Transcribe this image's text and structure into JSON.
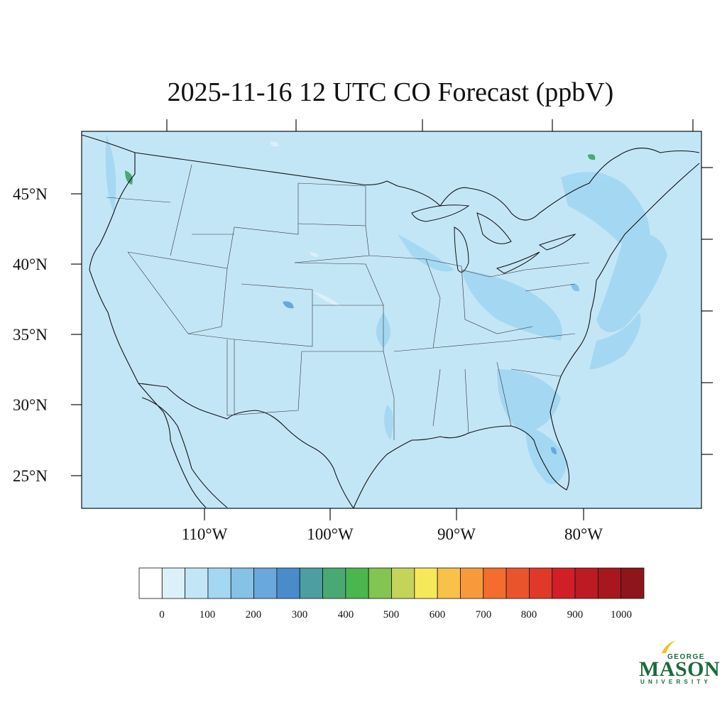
{
  "title": "2025-11-16 12 UTC CO Forecast (ppbV)",
  "map": {
    "projection": "Lambert Conformal, CONUS",
    "background_color": "#c3e6f7",
    "lat_labels": [
      "45°N",
      "40°N",
      "35°N",
      "30°N",
      "25°N"
    ],
    "lon_labels": [
      "110°W",
      "100°W",
      "90°W",
      "80°W"
    ]
  },
  "colorbar": {
    "unit": "ppbV",
    "tick_labels": [
      "0",
      "100",
      "200",
      "300",
      "400",
      "500",
      "600",
      "700",
      "800",
      "900",
      "1000"
    ],
    "colors": [
      "#ffffff",
      "#dcf0fa",
      "#c3e6f7",
      "#a3d7f2",
      "#86c1e6",
      "#68a8dc",
      "#4a8ccb",
      "#4c9ea1",
      "#4aa874",
      "#4ab64e",
      "#84c450",
      "#c4d45a",
      "#f7e85a",
      "#f7c14a",
      "#f89a3c",
      "#f46d2e",
      "#ea542c",
      "#e0392a",
      "#d21f27",
      "#bc1b23",
      "#a6181e",
      "#8e151a"
    ]
  },
  "logo": {
    "top": "GEORGE",
    "main": "MASON",
    "sub": "UNIVERSITY"
  }
}
